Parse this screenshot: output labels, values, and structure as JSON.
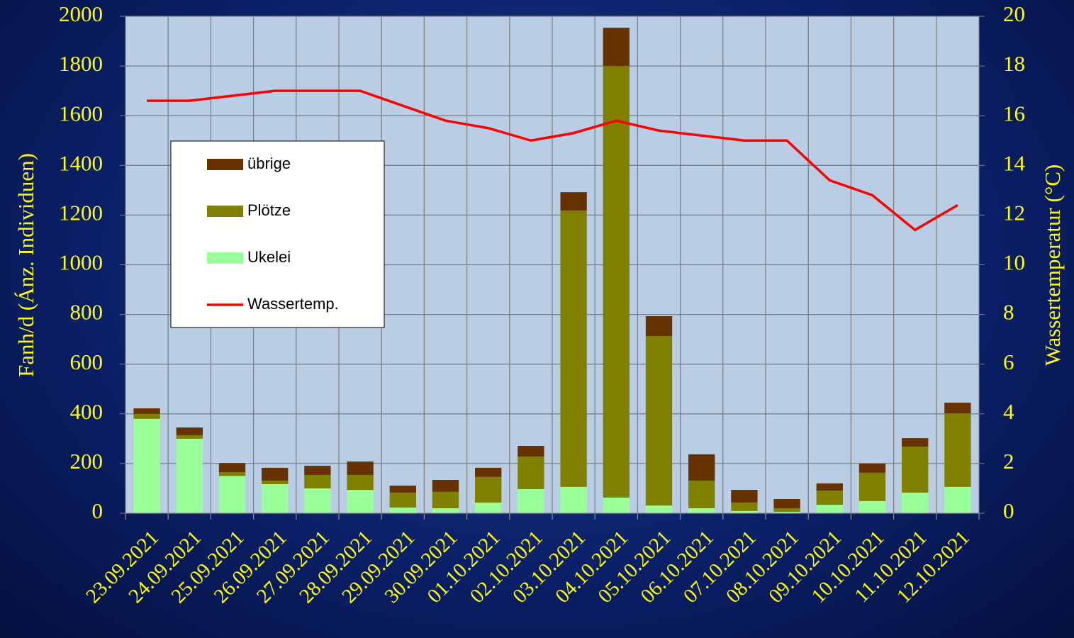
{
  "chart_data": {
    "type": "bar",
    "stacked": true,
    "categories": [
      "23.09.2021",
      "24.09.2021",
      "25.09.2021",
      "26.09.2021",
      "27.09.2021",
      "28.09.2021",
      "29.09.2021",
      "30.09.2021",
      "01.10.2021",
      "02.10.2021",
      "03.10.2021",
      "04.10.2021",
      "05.10.2021",
      "06.10.2021",
      "07.10.2021",
      "08.10.2021",
      "09.10.2021",
      "10.10.2021",
      "11.10.2021",
      "12.10.2021"
    ],
    "series": [
      {
        "name": "Ukelei",
        "color": "#99ff99",
        "values": [
          380,
          300,
          150,
          117,
          100,
          94,
          23,
          20,
          43,
          97,
          106,
          63,
          31,
          20,
          9,
          6,
          34,
          49,
          83,
          106
        ]
      },
      {
        "name": "Plötze",
        "color": "#808000",
        "values": [
          20,
          14,
          15,
          14,
          54,
          60,
          60,
          66,
          103,
          131,
          1112,
          1737,
          682,
          111,
          34,
          14,
          57,
          114,
          185,
          296
        ]
      },
      {
        "name": "übrige",
        "color": "#663300",
        "values": [
          22,
          31,
          37,
          52,
          37,
          54,
          28,
          48,
          37,
          43,
          74,
          154,
          80,
          106,
          51,
          37,
          29,
          37,
          34,
          43
        ]
      },
      {
        "name": "Wassertemp.",
        "color": "#ff0000",
        "type": "line",
        "axis": "y2",
        "values": [
          16.6,
          16.6,
          16.8,
          17.0,
          17.0,
          17.0,
          16.4,
          15.8,
          15.5,
          15.0,
          15.3,
          15.8,
          15.4,
          15.2,
          15.0,
          15.0,
          13.4,
          12.8,
          11.4,
          12.4
        ]
      }
    ],
    "legend_order": [
      "übrige",
      "Plötze",
      "Ukelei",
      "Wassertemp."
    ],
    "ylabel": "Fanh/d (Ánz. Individuen)",
    "y2label": "Wassertemperatur (°C)",
    "ylim": [
      0,
      2000
    ],
    "yticks": [
      0,
      200,
      400,
      600,
      800,
      1000,
      1200,
      1400,
      1600,
      1800,
      2000
    ],
    "y2lim": [
      0,
      20
    ],
    "y2ticks": [
      0,
      2,
      4,
      6,
      8,
      10,
      12,
      14,
      16,
      18,
      20
    ],
    "grid": true,
    "legend": "upper left"
  }
}
